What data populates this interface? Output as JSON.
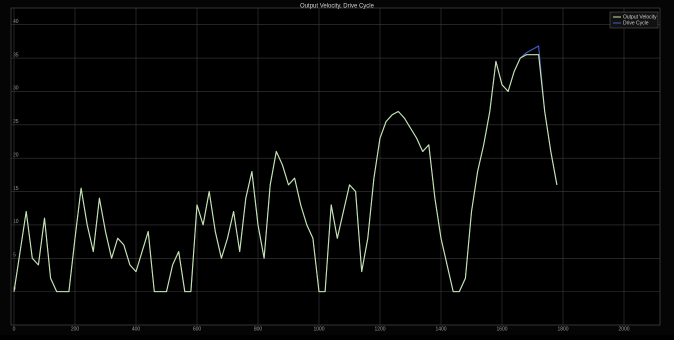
{
  "chart_data": {
    "type": "line",
    "title": "Output Velocity, Drive Cycle",
    "x": [
      0,
      20,
      40,
      60,
      80,
      100,
      120,
      140,
      160,
      180,
      200,
      220,
      240,
      260,
      280,
      300,
      320,
      340,
      360,
      380,
      400,
      420,
      440,
      460,
      480,
      500,
      520,
      540,
      560,
      580,
      600,
      620,
      640,
      660,
      680,
      700,
      720,
      740,
      760,
      780,
      800,
      820,
      840,
      860,
      880,
      900,
      920,
      940,
      960,
      980,
      1000,
      1020,
      1040,
      1060,
      1080,
      1100,
      1120,
      1140,
      1160,
      1180,
      1200,
      1220,
      1240,
      1260,
      1280,
      1300,
      1320,
      1340,
      1360,
      1380,
      1400,
      1420,
      1440,
      1460,
      1480,
      1500,
      1520,
      1540,
      1560,
      1580,
      1600,
      1620,
      1640,
      1660,
      1680,
      1700,
      1720,
      1740,
      1760,
      1780
    ],
    "series": [
      {
        "name": "Drive Cycle",
        "color": "#3d5fd0",
        "values": [
          0,
          6,
          12,
          5,
          4,
          11,
          2,
          0,
          0,
          0,
          8,
          15.5,
          10,
          6,
          14,
          9,
          5,
          8,
          7,
          4,
          3,
          6,
          9,
          0,
          0,
          0,
          4,
          6,
          0,
          0,
          13,
          10,
          15,
          9,
          5,
          8,
          12,
          6,
          14,
          18,
          10,
          5,
          16,
          21,
          19,
          16,
          17,
          13,
          10,
          8,
          0,
          0,
          13,
          8,
          12,
          16,
          15,
          3,
          8,
          17,
          23,
          25.5,
          26.5,
          27,
          26,
          24.5,
          23,
          21,
          22,
          14,
          8,
          4,
          0,
          0,
          2,
          12,
          18,
          22,
          27,
          34.5,
          31,
          30,
          33,
          35,
          35.8,
          36.3,
          36.8,
          27,
          21,
          16
        ]
      },
      {
        "name": "Output Velocity",
        "color": "#c9e4a4",
        "values": [
          0,
          6,
          12,
          5,
          4,
          11,
          2,
          0,
          0,
          0,
          8,
          15.5,
          10,
          6,
          14,
          9,
          5,
          8,
          7,
          4,
          3,
          6,
          9,
          0,
          0,
          0,
          4,
          6,
          0,
          0,
          13,
          10,
          15,
          9,
          5,
          8,
          12,
          6,
          14,
          18,
          10,
          5,
          16,
          21,
          19,
          16,
          17,
          13,
          10,
          8,
          0,
          0,
          13,
          8,
          12,
          16,
          15,
          3,
          8,
          17,
          23,
          25.5,
          26.5,
          27,
          26,
          24.5,
          23,
          21,
          22,
          14,
          8,
          4,
          0,
          0,
          2,
          12,
          18,
          22,
          27,
          34.5,
          31,
          30,
          33,
          35,
          35.5,
          35.5,
          35.5,
          27,
          21,
          16
        ]
      }
    ],
    "legend_order": [
      "Output Velocity",
      "Drive Cycle"
    ],
    "xlim": [
      0,
      2100
    ],
    "xticks": [
      0,
      200,
      400,
      600,
      800,
      1000,
      1200,
      1400,
      1600,
      1800,
      2000
    ],
    "ylim": [
      -5,
      42.5
    ],
    "yticks": [
      0,
      5,
      10,
      15,
      20,
      25,
      30,
      35,
      40
    ],
    "grid": true,
    "legend": "upper right"
  }
}
